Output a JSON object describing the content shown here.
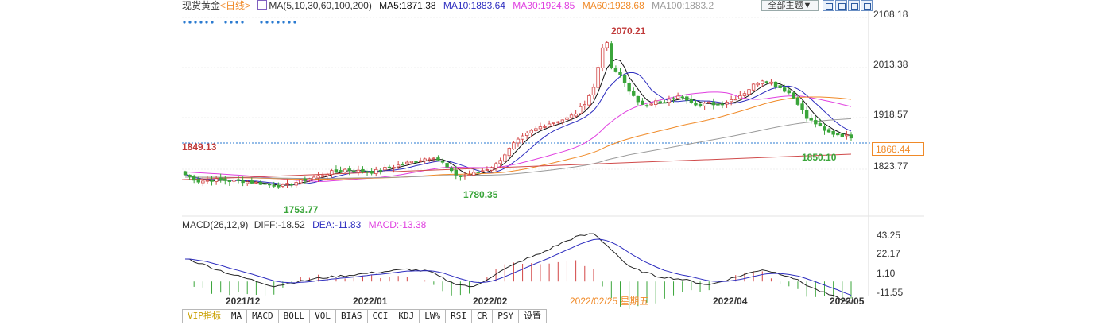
{
  "header": {
    "symbol": "现货黄金",
    "period": "<日线>",
    "ma_label": "MA(5,10,30,60,100,200)",
    "ma5": "MA5:1871.38",
    "ma10": "MA10:1883.64",
    "ma30": "MA30:1924.85",
    "ma60": "MA60:1928.68",
    "ma100": "MA100:1883.2",
    "theme_button": "全部主题▼",
    "colors": {
      "ma5": "#111111",
      "ma10": "#2d2dbf",
      "ma30": "#e040e0",
      "ma60": "#f08a28",
      "ma100": "#9a9a9a",
      "ma200": "#d04a4a",
      "up": "#d24545",
      "down": "#3aa53a",
      "info": "#2a7ad0"
    }
  },
  "price_panel": {
    "y_ticks": [
      "2108.18",
      "2013.38",
      "1918.57",
      "1823.77"
    ],
    "current_price": "1868.44",
    "annotations": {
      "high": "2070.21",
      "low_dec": "1753.77",
      "low_feb": "1780.35",
      "low_may": "1850.10",
      "left_marker": "1849.13"
    }
  },
  "macd_panel": {
    "title": "MACD(26,12,9)",
    "diff": "DIFF:-18.52",
    "dea": "DEA:-11.83",
    "macd": "MACD:-13.38",
    "y_ticks": [
      "43.25",
      "22.17",
      "1.10",
      "-11.55"
    ]
  },
  "x_axis": {
    "labels": [
      "2021/12",
      "2022/01",
      "2022/02",
      "2022/04",
      "2022/05"
    ],
    "crosshair_label": "2022/02/25 星期五"
  },
  "tabs": [
    "VIP指标",
    "MA",
    "MACD",
    "BOLL",
    "VOL",
    "BIAS",
    "CCI",
    "KDJ",
    "LW%",
    "RSI",
    "CR",
    "PSY",
    "设置"
  ],
  "chart_data": {
    "type": "candlestick",
    "title": "现货黄金 <日线>",
    "ylim": [
      1745,
      2110
    ],
    "anchors_close": [
      [
        0,
        1795
      ],
      [
        3,
        1782
      ],
      [
        7,
        1785
      ],
      [
        10,
        1783
      ],
      [
        13,
        1782
      ],
      [
        16,
        1779
      ],
      [
        19,
        1775
      ],
      [
        22,
        1773
      ],
      [
        25,
        1780
      ],
      [
        27,
        1785
      ],
      [
        30,
        1792
      ],
      [
        33,
        1800
      ],
      [
        36,
        1805
      ],
      [
        39,
        1802
      ],
      [
        42,
        1800
      ],
      [
        45,
        1807
      ],
      [
        48,
        1813
      ],
      [
        51,
        1820
      ],
      [
        54,
        1826
      ],
      [
        56,
        1830
      ],
      [
        58,
        1818
      ],
      [
        60,
        1800
      ],
      [
        62,
        1791
      ],
      [
        64,
        1795
      ],
      [
        66,
        1800
      ],
      [
        68,
        1806
      ],
      [
        70,
        1815
      ],
      [
        72,
        1835
      ],
      [
        74,
        1855
      ],
      [
        76,
        1868
      ],
      [
        78,
        1880
      ],
      [
        80,
        1888
      ],
      [
        82,
        1895
      ],
      [
        84,
        1900
      ],
      [
        86,
        1905
      ],
      [
        88,
        1915
      ],
      [
        90,
        1935
      ],
      [
        92,
        1965
      ],
      [
        94,
        2045
      ],
      [
        95,
        2050
      ],
      [
        96,
        2005
      ],
      [
        97,
        1995
      ],
      [
        98,
        1990
      ],
      [
        100,
        1960
      ],
      [
        102,
        1935
      ],
      [
        104,
        1932
      ],
      [
        106,
        1938
      ],
      [
        108,
        1935
      ],
      [
        110,
        1945
      ],
      [
        112,
        1948
      ],
      [
        114,
        1938
      ],
      [
        116,
        1930
      ],
      [
        118,
        1935
      ],
      [
        120,
        1932
      ],
      [
        122,
        1938
      ],
      [
        124,
        1945
      ],
      [
        126,
        1955
      ],
      [
        128,
        1970
      ],
      [
        130,
        1980
      ],
      [
        132,
        1975
      ],
      [
        134,
        1965
      ],
      [
        136,
        1955
      ],
      [
        138,
        1935
      ],
      [
        140,
        1905
      ],
      [
        142,
        1895
      ],
      [
        144,
        1880
      ],
      [
        146,
        1875
      ],
      [
        148,
        1872
      ],
      [
        150,
        1869
      ]
    ],
    "ma_series_names": [
      "MA5",
      "MA10",
      "MA30",
      "MA60",
      "MA100"
    ],
    "macd_anchors": [
      [
        0,
        22
      ],
      [
        10,
        8
      ],
      [
        20,
        -3
      ],
      [
        30,
        4
      ],
      [
        40,
        8
      ],
      [
        50,
        12
      ],
      [
        55,
        10
      ],
      [
        60,
        0
      ],
      [
        65,
        -4
      ],
      [
        70,
        8
      ],
      [
        76,
        20
      ],
      [
        80,
        26
      ],
      [
        84,
        34
      ],
      [
        88,
        41
      ],
      [
        92,
        44
      ],
      [
        96,
        30
      ],
      [
        100,
        14
      ],
      [
        106,
        6
      ],
      [
        112,
        3
      ],
      [
        118,
        -2
      ],
      [
        124,
        5
      ],
      [
        130,
        12
      ],
      [
        136,
        6
      ],
      [
        142,
        -6
      ],
      [
        150,
        -18.52
      ]
    ]
  }
}
